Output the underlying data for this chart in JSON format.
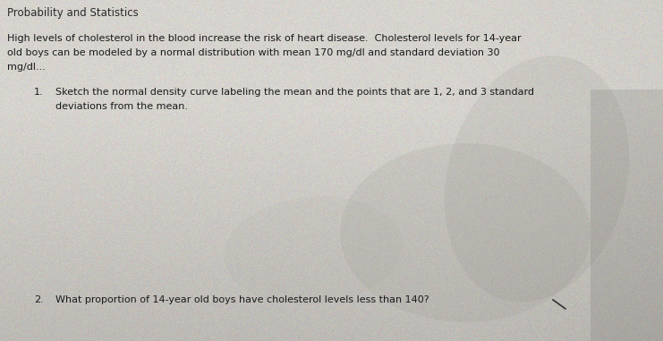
{
  "background_color": "#cccbc8",
  "paper_color": "#d8d7d3",
  "title_text": "Probability and Statistics",
  "title_fontsize": 8.5,
  "title_color": "#2a2a2a",
  "title_bold": false,
  "body_text_1_line1": "High levels of cholesterol in the blood increase the risk of heart disease.  Cholesterol levels for 14-year",
  "body_text_1_line2": "old boys can be modeled by a normal distribution with mean 170 mg/dl and standard deviation 30",
  "body_text_1_line3": "mg/dl...",
  "body_fontsize": 8.0,
  "body_color": "#1a1a1a",
  "item1_label": "1.",
  "item1_text_line1": "Sketch the normal density curve labeling the mean and the points that are 1, 2, and 3 standard",
  "item1_text_line2": "deviations from the mean.",
  "item2_label": "2.",
  "item2_text": "What proportion of 14-year old boys have cholesterol levels less than 140?",
  "item_fontsize": 8.0,
  "item_color": "#1a1a1a",
  "faint_bg_alpha": 0.18,
  "noise_alpha": 0.12
}
